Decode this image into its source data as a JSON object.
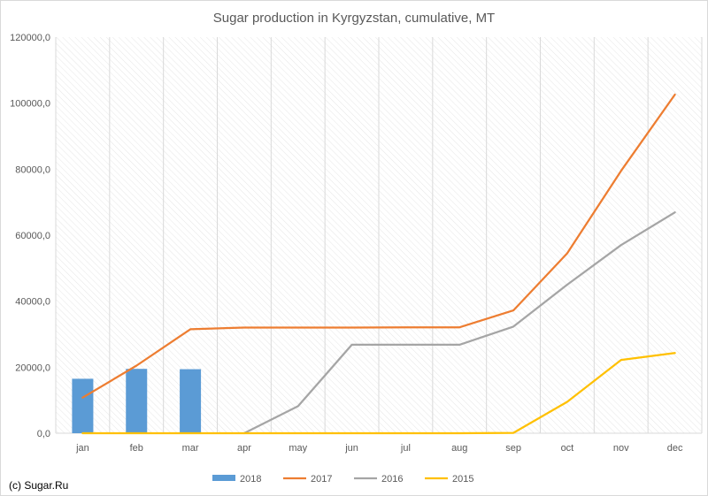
{
  "chart_data": {
    "type": "bar+line",
    "title": "Sugar production in Kyrgyzstan, cumulative, MT",
    "categories": [
      "jan",
      "feb",
      "mar",
      "apr",
      "may",
      "jun",
      "jul",
      "aug",
      "sep",
      "oct",
      "nov",
      "dec"
    ],
    "ylim": [
      0,
      120000
    ],
    "yticks": [
      0,
      20000,
      40000,
      60000,
      80000,
      100000,
      120000
    ],
    "ytick_labels": [
      "0,0",
      "20000,0",
      "40000,0",
      "60000,0",
      "80000,0",
      "100000,0",
      "120000,0"
    ],
    "grid": "hatched background with vertical gridlines",
    "legend_position": "bottom",
    "series": [
      {
        "name": "2018",
        "type": "bar",
        "color": "#5B9BD5",
        "values": [
          16500,
          19500,
          19400,
          null,
          null,
          null,
          null,
          null,
          null,
          null,
          null,
          null
        ]
      },
      {
        "name": "2017",
        "type": "line",
        "color": "#ED7D31",
        "values": [
          10800,
          20500,
          31500,
          32000,
          32000,
          32000,
          32100,
          32100,
          37200,
          54500,
          79500,
          102600
        ]
      },
      {
        "name": "2016",
        "type": "line",
        "color": "#A5A5A5",
        "values": [
          null,
          null,
          null,
          0,
          8200,
          26800,
          26800,
          26800,
          32300,
          45000,
          57000,
          66900
        ]
      },
      {
        "name": "2015",
        "type": "line",
        "color": "#FFC000",
        "values": [
          0,
          0,
          0,
          0,
          0,
          0,
          0,
          0,
          100,
          9500,
          22200,
          24300
        ]
      }
    ]
  },
  "footer": {
    "credit": "(c) Sugar.Ru"
  }
}
